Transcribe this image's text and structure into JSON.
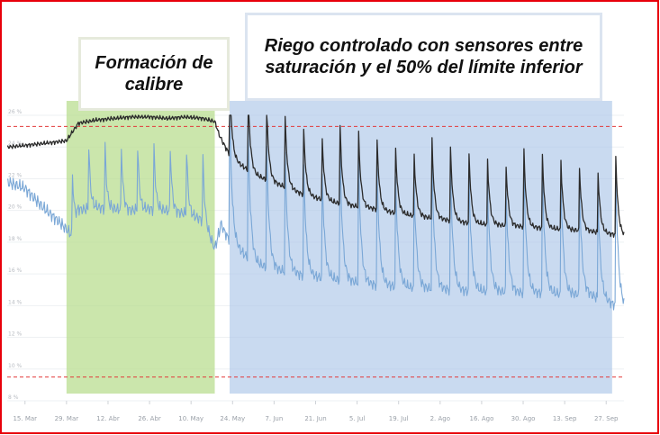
{
  "callouts": {
    "formacion": "Formación de calibre",
    "riego": "Riego controlado con sensores entre saturación y el 50% del límite inferior"
  },
  "colors": {
    "frame": "#e8000b",
    "formacion_fill": "#b7dc8c",
    "riego_fill": "#a8c3e6",
    "line_dark": "#2b2b2b",
    "line_blue": "#7aa7d6",
    "threshold": "#e23b3b",
    "grid": "#eef0f3"
  },
  "chart_data": {
    "type": "line",
    "title": "",
    "xlabel": "",
    "ylabel": "",
    "x_tick_labels": [
      "15. Mar",
      "29. Mar",
      "12. Abr",
      "26. Abr",
      "10. May",
      "24. May",
      "7. Jun",
      "21. Jun",
      "5. Jul",
      "19. Jul",
      "2. Ago",
      "16. Ago",
      "30. Ago",
      "13. Sep",
      "27. Sep"
    ],
    "y_tick_labels": [
      "8 %",
      "10 %",
      "12 %",
      "14 %",
      "16 %",
      "18 %",
      "20 %",
      "22 %",
      "24 %",
      "26 %"
    ],
    "ylim": [
      8,
      26
    ],
    "x_range_days": [
      -6,
      202
    ],
    "thresholds": [
      {
        "name": "upper",
        "value": 25.3
      },
      {
        "name": "lower",
        "value": 9.5
      }
    ],
    "regions": [
      {
        "callout": "formacion",
        "start_day": 14,
        "end_day": 64
      },
      {
        "callout": "riego",
        "start_day": 69,
        "end_day": 198
      }
    ],
    "series": [
      {
        "name": "",
        "style": "dark",
        "x": [
          -6,
          0,
          10,
          14,
          18,
          24,
          30,
          36,
          42,
          48,
          54,
          60,
          64,
          66,
          70,
          78,
          86,
          94,
          102,
          110,
          118,
          126,
          134,
          142,
          150,
          158,
          166,
          174,
          182,
          190,
          198,
          202
        ],
        "y": [
          24.0,
          24.1,
          24.3,
          24.4,
          25.5,
          25.7,
          25.8,
          25.9,
          25.9,
          25.8,
          25.9,
          25.8,
          25.6,
          24.5,
          23.2,
          22.2,
          21.6,
          21.0,
          20.6,
          20.3,
          20.1,
          19.8,
          19.6,
          19.4,
          19.2,
          19.1,
          19.0,
          18.9,
          18.8,
          18.7,
          18.5,
          18.4
        ]
      },
      {
        "name": "",
        "style": "blue",
        "x": [
          -6,
          0,
          6,
          12,
          16,
          18,
          24,
          30,
          36,
          42,
          48,
          54,
          60,
          64,
          66,
          70,
          78,
          86,
          94,
          102,
          110,
          118,
          126,
          134,
          142,
          150,
          158,
          166,
          174,
          182,
          190,
          194,
          198,
          202
        ],
        "y": [
          21.8,
          21.4,
          20.2,
          19.2,
          18.4,
          20.0,
          20.2,
          20.1,
          20.0,
          20.1,
          20.0,
          19.8,
          19.4,
          17.6,
          19.0,
          17.8,
          16.6,
          16.2,
          15.9,
          15.7,
          15.5,
          15.3,
          15.2,
          15.1,
          15.0,
          14.9,
          14.9,
          14.8,
          14.8,
          14.7,
          14.7,
          14.4,
          14.1,
          13.9
        ]
      }
    ]
  }
}
